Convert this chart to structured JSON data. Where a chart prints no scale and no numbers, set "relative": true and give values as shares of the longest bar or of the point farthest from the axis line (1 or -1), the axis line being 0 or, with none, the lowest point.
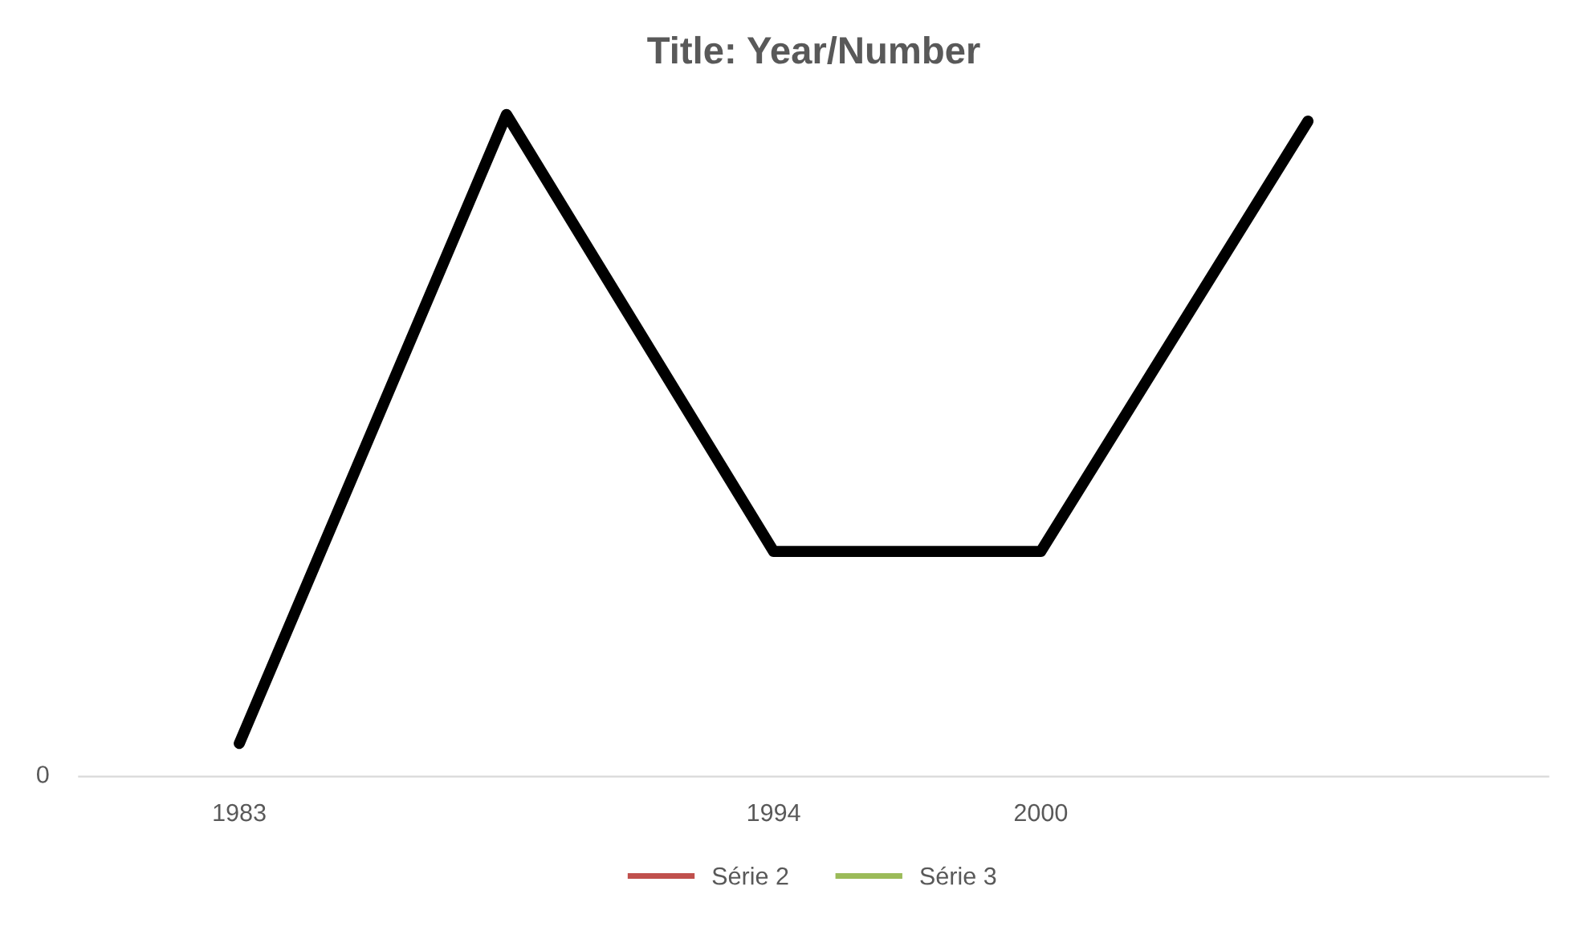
{
  "chart_data": {
    "type": "line",
    "title": "Title: Year/Number",
    "relative": true,
    "categories": [
      "1983",
      null,
      "1994",
      "2000",
      null
    ],
    "series": [
      {
        "color": "#000000",
        "values": [
          0.05,
          1.0,
          0.34,
          0.34,
          0.99
        ]
      },
      {
        "name": "Série 2",
        "color": "#c0504d",
        "values": [
          null,
          null,
          null,
          null,
          null
        ]
      },
      {
        "name": "Série 3",
        "color": "#9bbb59",
        "values": [
          null,
          null,
          null,
          null,
          null
        ]
      }
    ],
    "annotations": [
      "0"
    ],
    "legend": "bottom",
    "grid": false,
    "marker": "none",
    "line_style": "solid"
  }
}
